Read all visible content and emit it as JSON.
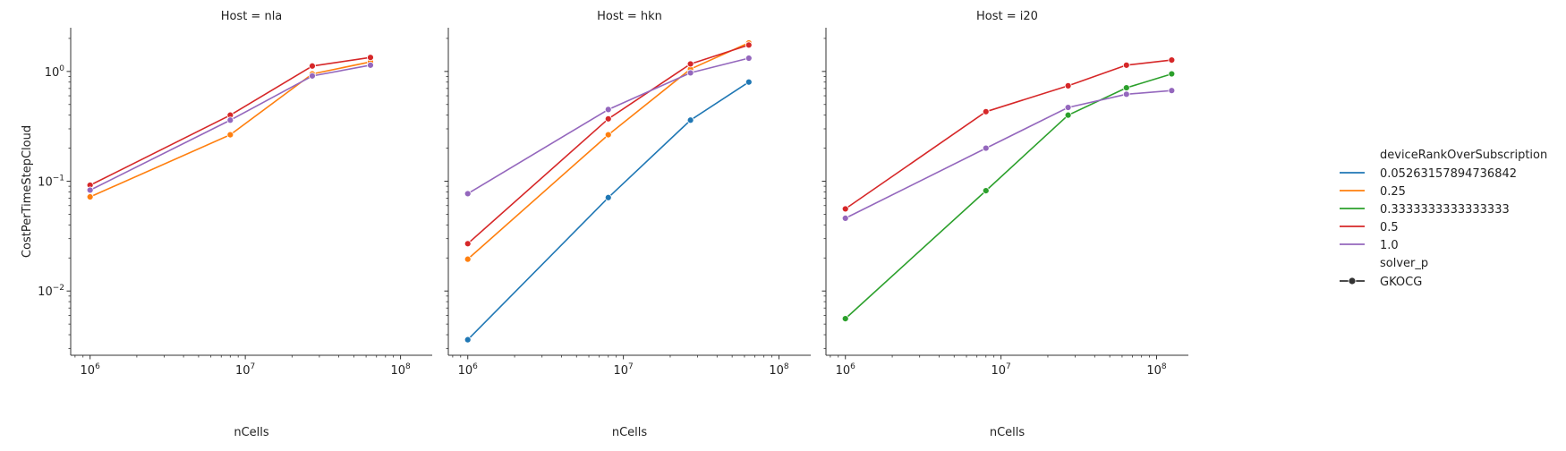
{
  "chart_data": {
    "type": "line",
    "ylabel": "CostPerTimeStepCloud",
    "xlabel": "nCells",
    "x_scale": "log",
    "y_scale": "log",
    "xlim": [
      750000,
      160000000
    ],
    "ylim": [
      0.0026,
      2.5
    ],
    "x_ticks": [
      {
        "value": 1000000,
        "base": "10",
        "exp": "6"
      },
      {
        "value": 10000000,
        "base": "10",
        "exp": "7"
      },
      {
        "value": 100000000,
        "base": "10",
        "exp": "8"
      }
    ],
    "y_ticks": [
      {
        "value": 0.01,
        "base": "10",
        "exp": "−2"
      },
      {
        "value": 0.1,
        "base": "10",
        "exp": "−1"
      },
      {
        "value": 1,
        "base": "10",
        "exp": "0"
      }
    ],
    "grid": false,
    "legend": {
      "placement": "right",
      "hue_title": "deviceRankOverSubscription",
      "hue_entries": [
        {
          "label": "0.05263157894736842",
          "color": "#1f77b4"
        },
        {
          "label": "0.25",
          "color": "#ff7f0e"
        },
        {
          "label": "0.3333333333333333",
          "color": "#2ca02c"
        },
        {
          "label": "0.5",
          "color": "#d62728"
        },
        {
          "label": "1.0",
          "color": "#9467bd"
        }
      ],
      "style_title": "solver_p",
      "style_entries": [
        {
          "label": "GKOCG",
          "color": "#333333"
        }
      ]
    },
    "panels": [
      {
        "title": "Host = nla",
        "series": [
          {
            "hue": "0.25",
            "color": "#ff7f0e",
            "x": [
              1000000,
              8000000,
              27000000,
              64000000
            ],
            "y": [
              0.072,
              0.265,
              0.95,
              1.22
            ]
          },
          {
            "hue": "0.5",
            "color": "#d62728",
            "x": [
              1000000,
              8000000,
              27000000,
              64000000
            ],
            "y": [
              0.092,
              0.4,
              1.12,
              1.34
            ]
          },
          {
            "hue": "1.0",
            "color": "#9467bd",
            "x": [
              1000000,
              8000000,
              27000000,
              64000000
            ],
            "y": [
              0.083,
              0.36,
              0.91,
              1.14
            ]
          }
        ]
      },
      {
        "title": "Host = hkn",
        "series": [
          {
            "hue": "0.05263157894736842",
            "color": "#1f77b4",
            "x": [
              1000000,
              8000000,
              27000000,
              64000000
            ],
            "y": [
              0.0036,
              0.071,
              0.36,
              0.8
            ]
          },
          {
            "hue": "0.25",
            "color": "#ff7f0e",
            "x": [
              1000000,
              8000000,
              27000000,
              64000000
            ],
            "y": [
              0.0195,
              0.265,
              1.05,
              1.82
            ]
          },
          {
            "hue": "0.5",
            "color": "#d62728",
            "x": [
              1000000,
              8000000,
              27000000,
              64000000
            ],
            "y": [
              0.027,
              0.37,
              1.17,
              1.74
            ]
          },
          {
            "hue": "1.0",
            "color": "#9467bd",
            "x": [
              1000000,
              8000000,
              27000000,
              64000000
            ],
            "y": [
              0.077,
              0.45,
              0.97,
              1.32
            ]
          }
        ]
      },
      {
        "title": "Host = i20",
        "series": [
          {
            "hue": "0.3333333333333333",
            "color": "#2ca02c",
            "x": [
              1000000,
              8000000,
              27000000,
              64000000,
              125000000
            ],
            "y": [
              0.0056,
              0.082,
              0.4,
              0.71,
              0.95
            ]
          },
          {
            "hue": "0.5",
            "color": "#d62728",
            "x": [
              1000000,
              8000000,
              27000000,
              64000000,
              125000000
            ],
            "y": [
              0.056,
              0.43,
              0.74,
              1.14,
              1.27
            ]
          },
          {
            "hue": "1.0",
            "color": "#9467bd",
            "x": [
              1000000,
              8000000,
              27000000,
              64000000,
              125000000
            ],
            "y": [
              0.046,
              0.2,
              0.47,
              0.62,
              0.67
            ]
          }
        ]
      }
    ]
  }
}
